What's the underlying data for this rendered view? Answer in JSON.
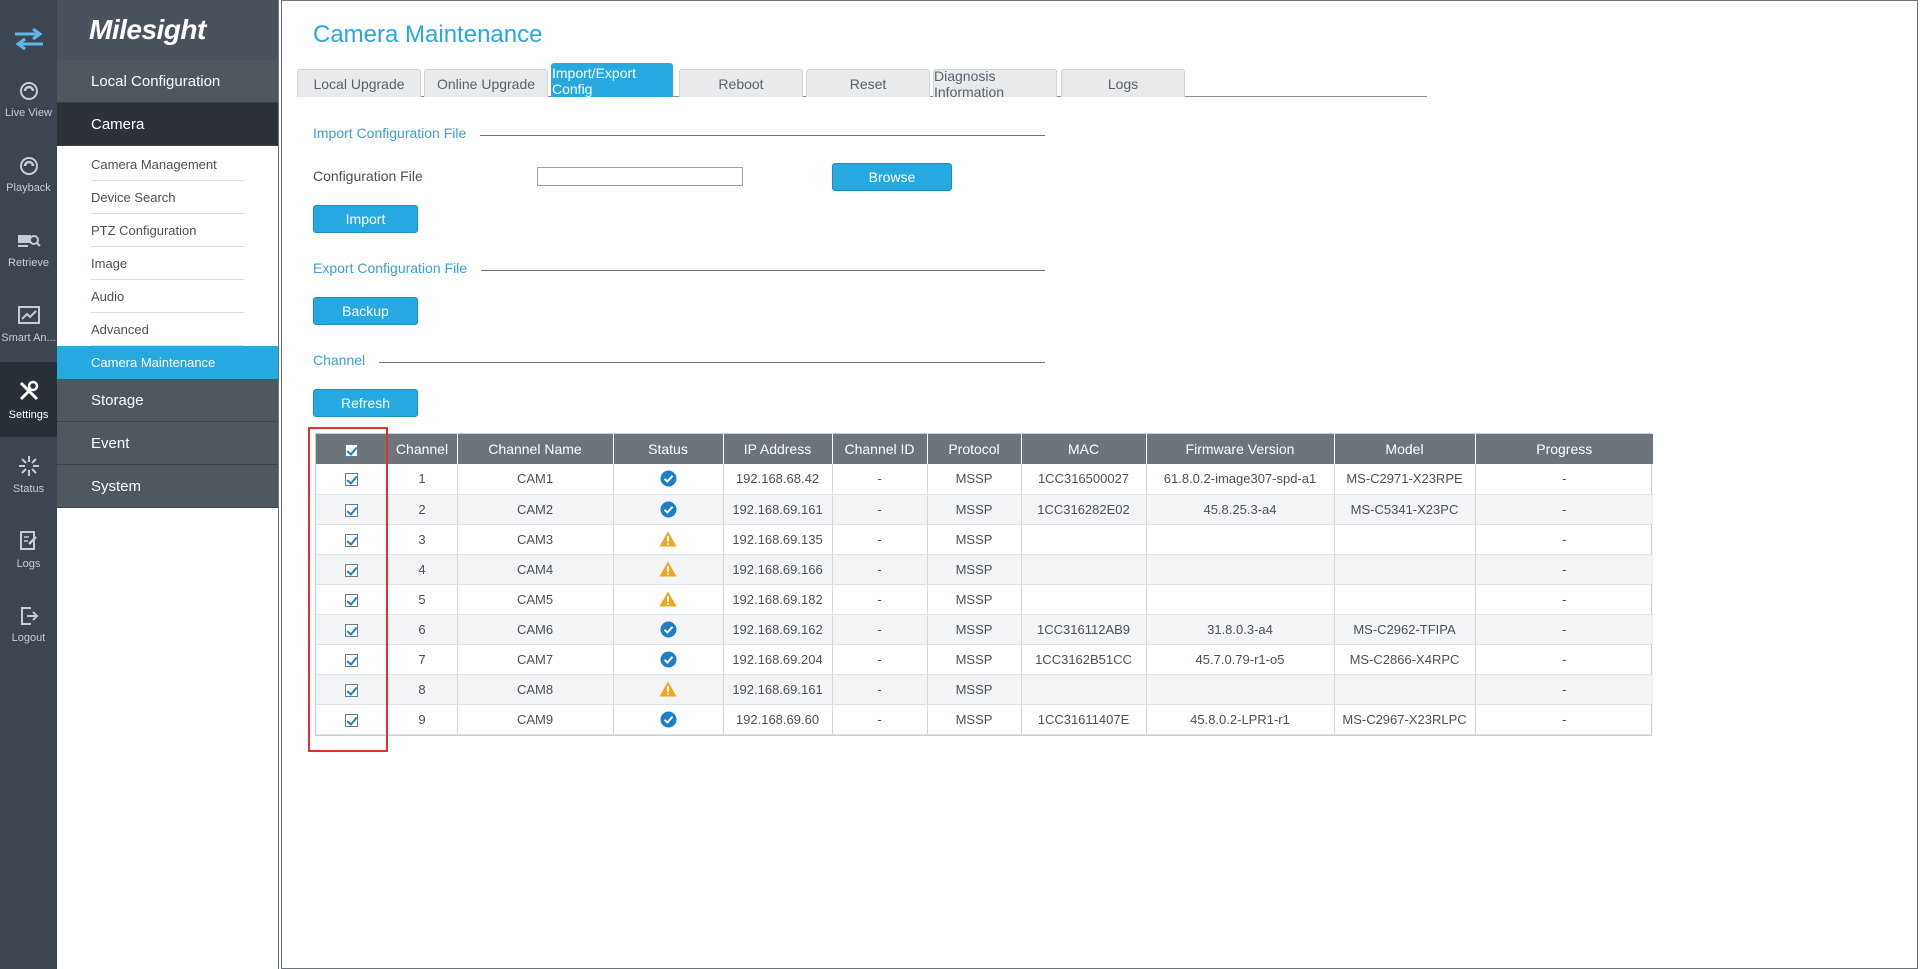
{
  "rail": {
    "items": [
      {
        "label": "Live View",
        "icon": "live-view-icon"
      },
      {
        "label": "Playback",
        "icon": "playback-icon"
      },
      {
        "label": "Retrieve",
        "icon": "retrieve-icon"
      },
      {
        "label": "Smart An...",
        "icon": "smart-analysis-icon"
      },
      {
        "label": "Settings",
        "icon": "settings-icon",
        "active": true
      },
      {
        "label": "Status",
        "icon": "status-icon"
      },
      {
        "label": "Logs",
        "icon": "logs-icon"
      },
      {
        "label": "Logout",
        "icon": "logout-icon"
      }
    ]
  },
  "brand": "Milesight",
  "menu": {
    "local_configuration": "Local Configuration",
    "camera": "Camera",
    "camera_items": [
      "Camera Management",
      "Device Search",
      "PTZ Configuration",
      "Image",
      "Audio",
      "Advanced",
      "Camera Maintenance"
    ],
    "storage": "Storage",
    "event": "Event",
    "system": "System"
  },
  "page": {
    "title": "Camera Maintenance",
    "tabs": [
      "Local Upgrade",
      "Online Upgrade",
      "Import/Export Config",
      "Reboot",
      "Reset",
      "Diagnosis Information",
      "Logs"
    ],
    "active_tab": "Import/Export Config"
  },
  "import_section": {
    "title": "Import Configuration File",
    "field_label": "Configuration File",
    "field_value": "",
    "browse_label": "Browse",
    "import_label": "Import"
  },
  "export_section": {
    "title": "Export Configuration File",
    "backup_label": "Backup"
  },
  "channel_section": {
    "title": "Channel",
    "refresh_label": "Refresh"
  },
  "table": {
    "headers": [
      "",
      "Channel",
      "Channel Name",
      "Status",
      "IP Address",
      "Channel ID",
      "Protocol",
      "MAC",
      "Firmware Version",
      "Model",
      "Progress"
    ],
    "rows": [
      {
        "channel": "1",
        "name": "CAM1",
        "status": "ok",
        "ip": "192.168.68.42",
        "channel_id": "-",
        "protocol": "MSSP",
        "mac": "1CC316500027",
        "firmware": "61.8.0.2-image307-spd-a1",
        "model": "MS-C2971-X23RPE",
        "progress": "-"
      },
      {
        "channel": "2",
        "name": "CAM2",
        "status": "ok",
        "ip": "192.168.69.161",
        "channel_id": "-",
        "protocol": "MSSP",
        "mac": "1CC316282E02",
        "firmware": "45.8.25.3-a4",
        "model": "MS-C5341-X23PC",
        "progress": "-"
      },
      {
        "channel": "3",
        "name": "CAM3",
        "status": "warn",
        "ip": "192.168.69.135",
        "channel_id": "-",
        "protocol": "MSSP",
        "mac": "",
        "firmware": "",
        "model": "",
        "progress": "-"
      },
      {
        "channel": "4",
        "name": "CAM4",
        "status": "warn",
        "ip": "192.168.69.166",
        "channel_id": "-",
        "protocol": "MSSP",
        "mac": "",
        "firmware": "",
        "model": "",
        "progress": "-"
      },
      {
        "channel": "5",
        "name": "CAM5",
        "status": "warn",
        "ip": "192.168.69.182",
        "channel_id": "-",
        "protocol": "MSSP",
        "mac": "",
        "firmware": "",
        "model": "",
        "progress": "-"
      },
      {
        "channel": "6",
        "name": "CAM6",
        "status": "ok",
        "ip": "192.168.69.162",
        "channel_id": "-",
        "protocol": "MSSP",
        "mac": "1CC316112AB9",
        "firmware": "31.8.0.3-a4",
        "model": "MS-C2962-TFIPA",
        "progress": "-"
      },
      {
        "channel": "7",
        "name": "CAM7",
        "status": "ok",
        "ip": "192.168.69.204",
        "channel_id": "-",
        "protocol": "MSSP",
        "mac": "1CC3162B51CC",
        "firmware": "45.7.0.79-r1-o5",
        "model": "MS-C2866-X4RPC",
        "progress": "-"
      },
      {
        "channel": "8",
        "name": "CAM8",
        "status": "warn",
        "ip": "192.168.69.161",
        "channel_id": "-",
        "protocol": "MSSP",
        "mac": "",
        "firmware": "",
        "model": "",
        "progress": "-"
      },
      {
        "channel": "9",
        "name": "CAM9",
        "status": "ok",
        "ip": "192.168.69.60",
        "channel_id": "-",
        "protocol": "MSSP",
        "mac": "1CC31611407E",
        "firmware": "45.8.0.2-LPR1-r1",
        "model": "MS-C2967-X23RLPC",
        "progress": "-"
      }
    ]
  },
  "colors": {
    "accent": "#26a9e0",
    "ok": "#1f7fc4",
    "warn": "#f0a51c",
    "highlight": "#e0302f"
  }
}
